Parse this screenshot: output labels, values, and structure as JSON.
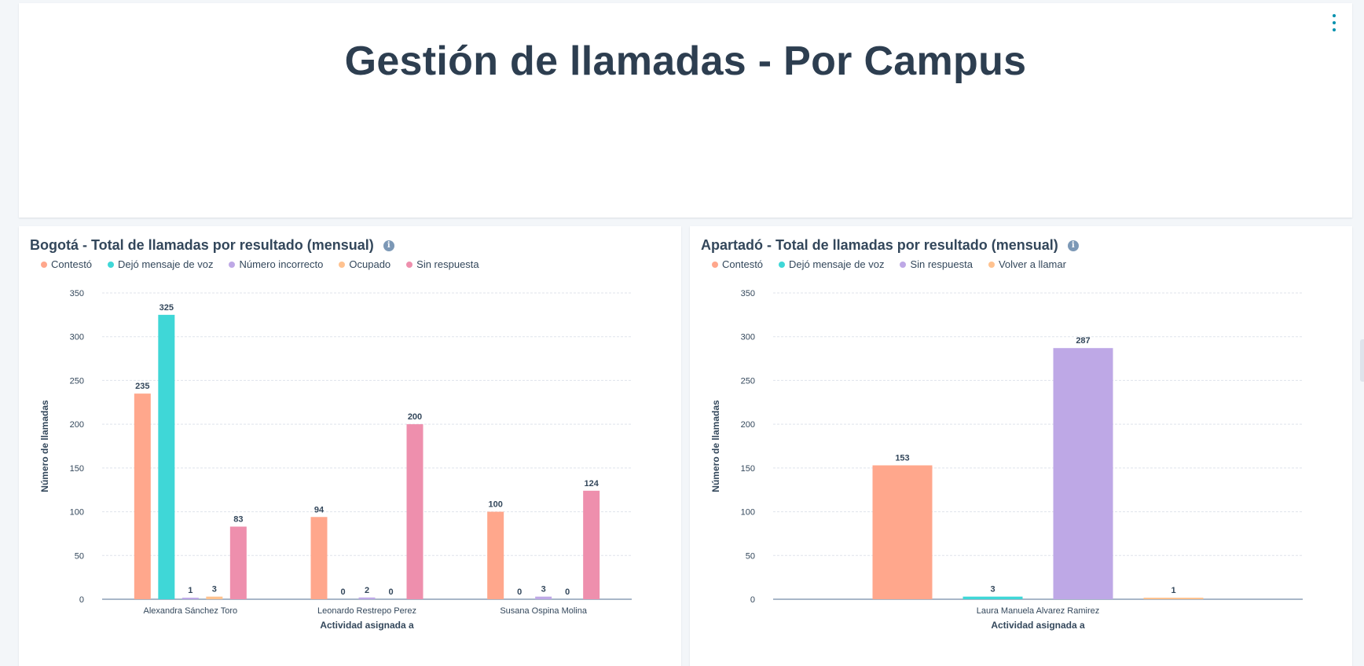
{
  "dashboard": {
    "title": "Gestión de llamadas - Por Campus"
  },
  "colors": {
    "contesto": "#ffa78c",
    "dejo_mensaje": "#3fd7d7",
    "numero_incorrecto": "#bea8e6",
    "ocupado": "#ffc28f",
    "sin_respuesta": "#ee8fad",
    "sin_respuesta_apartado": "#bea8e6",
    "volver_llamar": "#ffc28f"
  },
  "chart_data": [
    {
      "type": "bar",
      "title": "Bogotá - Total de llamadas por resultado (mensual)",
      "xlabel": "Actividad asignada a",
      "ylabel": "Número de llamadas",
      "ylim": [
        0,
        350
      ],
      "yticks": [
        "0",
        "50",
        "100",
        "150",
        "200",
        "250",
        "300",
        "350"
      ],
      "categories": [
        "Alexandra Sánchez Toro",
        "Leonardo Restrepo Perez",
        "Susana Ospina Molina"
      ],
      "series": [
        {
          "name": "Contestó",
          "color": "#ffa78c",
          "values": [
            235,
            94,
            100
          ]
        },
        {
          "name": "Dejó mensaje de voz",
          "color": "#3fd7d7",
          "values": [
            325,
            0,
            0
          ]
        },
        {
          "name": "Número incorrecto",
          "color": "#bea8e6",
          "values": [
            1,
            2,
            3
          ]
        },
        {
          "name": "Ocupado",
          "color": "#ffc28f",
          "values": [
            3,
            0,
            0
          ]
        },
        {
          "name": "Sin respuesta",
          "color": "#ee8fad",
          "values": [
            83,
            200,
            124
          ]
        }
      ]
    },
    {
      "type": "bar",
      "title": "Apartadó - Total de llamadas por resultado (mensual)",
      "xlabel": "Actividad asignada a",
      "ylabel": "Número de llamadas",
      "ylim": [
        0,
        350
      ],
      "yticks": [
        "0",
        "50",
        "100",
        "150",
        "200",
        "250",
        "300",
        "350"
      ],
      "categories": [
        "Laura Manuela Alvarez Ramirez"
      ],
      "series": [
        {
          "name": "Contestó",
          "color": "#ffa78c",
          "values": [
            153
          ]
        },
        {
          "name": "Dejó mensaje de voz",
          "color": "#3fd7d7",
          "values": [
            3
          ]
        },
        {
          "name": "Sin respuesta",
          "color": "#bea8e6",
          "values": [
            287
          ]
        },
        {
          "name": "Volver a llamar",
          "color": "#ffc28f",
          "values": [
            1
          ]
        }
      ]
    }
  ]
}
